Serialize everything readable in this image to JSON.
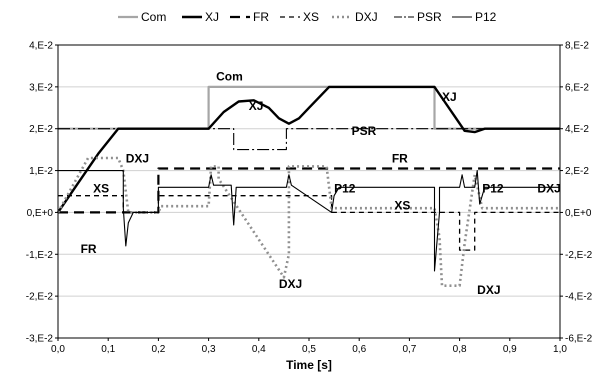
{
  "chart_data": {
    "type": "line",
    "xlabel": "Time [s]",
    "ylabel": "",
    "ylabel_right": "",
    "xlim": [
      0,
      1.0
    ],
    "ylim": [
      -0.03,
      0.04
    ],
    "ylim_right": [
      -0.06,
      0.08
    ],
    "x_ticks": [
      "0,0",
      "0,1",
      "0,2",
      "0,3",
      "0,4",
      "0,5",
      "0,6",
      "0,7",
      "0,8",
      "0,9",
      "1,0"
    ],
    "y_ticks": [
      "-3,E-2",
      "-2,E-2",
      "-1,E-2",
      "0,E+0",
      "1,E-2",
      "2,E-2",
      "3,E-2",
      "4,E-2"
    ],
    "y_ticks_right": [
      "-6,E-2",
      "-4,E-2",
      "-2,E-2",
      "0,E+0",
      "2,E-2",
      "4,E-2",
      "6,E-2",
      "8,E-2"
    ],
    "grid": true,
    "legend_position": "top",
    "series": [
      {
        "name": "Com",
        "axis": "left",
        "color": "#a6a6a6",
        "dash": "solid",
        "width": 2.2,
        "x": [
          0,
          0.3,
          0.3,
          0.75,
          0.75,
          1.0
        ],
        "y": [
          0.02,
          0.02,
          0.03,
          0.03,
          0.02,
          0.02
        ]
      },
      {
        "name": "XJ",
        "axis": "left",
        "color": "#000000",
        "dash": "solid",
        "width": 2.4,
        "x": [
          0,
          0.04,
          0.08,
          0.12,
          0.2,
          0.3,
          0.33,
          0.36,
          0.39,
          0.42,
          0.44,
          0.46,
          0.48,
          0.5,
          0.54,
          0.75,
          0.77,
          0.79,
          0.81,
          0.83,
          0.85,
          1.0
        ],
        "y": [
          0.0,
          0.007,
          0.014,
          0.02,
          0.02,
          0.02,
          0.024,
          0.0265,
          0.0268,
          0.025,
          0.0225,
          0.0212,
          0.0225,
          0.025,
          0.03,
          0.03,
          0.0265,
          0.023,
          0.0195,
          0.0192,
          0.02,
          0.02
        ]
      },
      {
        "name": "FR",
        "axis": "right",
        "color": "#000000",
        "dash": "10,6",
        "width": 2.2,
        "x": [
          0,
          0.2,
          0.2,
          1.0
        ],
        "y": [
          0.0,
          0.0,
          0.021,
          0.021
        ]
      },
      {
        "name": "XS",
        "axis": "right",
        "color": "#000000",
        "dash": "5,4",
        "width": 1.3,
        "x": [
          0,
          0.13,
          0.13,
          0.2,
          0.2,
          0.3,
          0.3,
          0.455,
          0.455,
          0.545,
          0.545,
          0.75,
          0.75,
          0.8,
          0.8,
          0.83,
          0.83,
          1.0
        ],
        "y": [
          0.008,
          0.008,
          0.0,
          0.0,
          0.008,
          0.008,
          0.008,
          0.008,
          0.008,
          0.008,
          0.0,
          0.0,
          0.0,
          0.0,
          -0.018,
          -0.018,
          0.0,
          0.0
        ]
      },
      {
        "name": "DXJ",
        "axis": "right",
        "color": "#909090",
        "dash": "2,3",
        "width": 2.6,
        "x": [
          0,
          0.06,
          0.12,
          0.13,
          0.14,
          0.2,
          0.205,
          0.3,
          0.305,
          0.32,
          0.32,
          0.45,
          0.46,
          0.46,
          0.49,
          0.535,
          0.545,
          0.75,
          0.76,
          0.765,
          0.8,
          0.81,
          0.83,
          0.845,
          1.0
        ],
        "y": [
          0.0,
          0.026,
          0.026,
          0.02,
          0.0,
          0.0,
          0.003,
          0.003,
          0.022,
          0.022,
          0.016,
          -0.031,
          -0.02,
          0.022,
          0.022,
          0.022,
          0.002,
          0.002,
          -0.012,
          -0.035,
          -0.035,
          -0.015,
          0.018,
          0.002,
          0.002
        ]
      },
      {
        "name": "PSR",
        "axis": "left",
        "color": "#000000",
        "dash": "12,3,2,3",
        "width": 1.1,
        "x": [
          0,
          0.35,
          0.35,
          0.455,
          0.455,
          1.0
        ],
        "y": [
          0.02,
          0.02,
          0.015,
          0.015,
          0.02,
          0.02
        ]
      },
      {
        "name": "P12",
        "axis": "right",
        "color": "#000000",
        "dash": "solid",
        "width": 1.1,
        "x": [
          0,
          0.13,
          0.13,
          0.135,
          0.14,
          0.15,
          0.15,
          0.2,
          0.2,
          0.3,
          0.305,
          0.31,
          0.345,
          0.35,
          0.355,
          0.455,
          0.46,
          0.465,
          0.545,
          0.55,
          0.56,
          0.57,
          0.75,
          0.75,
          0.76,
          0.76,
          0.8,
          0.805,
          0.81,
          0.83,
          0.835,
          0.84,
          0.85,
          1.0
        ],
        "y": [
          0.02,
          0.02,
          0.002,
          -0.016,
          -0.005,
          0.0,
          0.0,
          0.0,
          0.012,
          0.012,
          0.018,
          0.013,
          0.013,
          -0.006,
          0.012,
          0.012,
          0.018,
          0.013,
          0.0,
          0.008,
          0.012,
          0.012,
          0.012,
          -0.028,
          0.0,
          0.012,
          0.012,
          0.018,
          0.012,
          0.012,
          0.02,
          0.004,
          0.012,
          0.012
        ]
      }
    ],
    "annotations": [
      {
        "text": "Com",
        "x": 0.315,
        "y": 0.0315,
        "axis": "left"
      },
      {
        "text": "XJ",
        "x": 0.38,
        "y": 0.0245,
        "axis": "left"
      },
      {
        "text": "XJ",
        "x": 0.765,
        "y": 0.0266,
        "axis": "left"
      },
      {
        "text": "PSR",
        "x": 0.585,
        "y": 0.0185,
        "axis": "left"
      },
      {
        "text": "DXJ",
        "x": 0.135,
        "y": 0.0238,
        "axis": "right"
      },
      {
        "text": "FR",
        "x": 0.665,
        "y": 0.0238,
        "axis": "right"
      },
      {
        "text": "XS",
        "x": 0.07,
        "y": 0.0095,
        "axis": "right"
      },
      {
        "text": "FR",
        "x": 0.045,
        "y": -0.0195,
        "axis": "right"
      },
      {
        "text": "P12",
        "x": 0.55,
        "y": 0.0095,
        "axis": "right"
      },
      {
        "text": "XS",
        "x": 0.67,
        "y": 0.0015,
        "axis": "right"
      },
      {
        "text": "DXJ",
        "x": 0.44,
        "y": -0.036,
        "axis": "right"
      },
      {
        "text": "DXJ",
        "x": 0.835,
        "y": -0.039,
        "axis": "right"
      },
      {
        "text": "P12",
        "x": 0.845,
        "y": 0.0095,
        "axis": "right"
      },
      {
        "text": "DXJ",
        "x": 0.955,
        "y": 0.0095,
        "axis": "right"
      }
    ]
  }
}
